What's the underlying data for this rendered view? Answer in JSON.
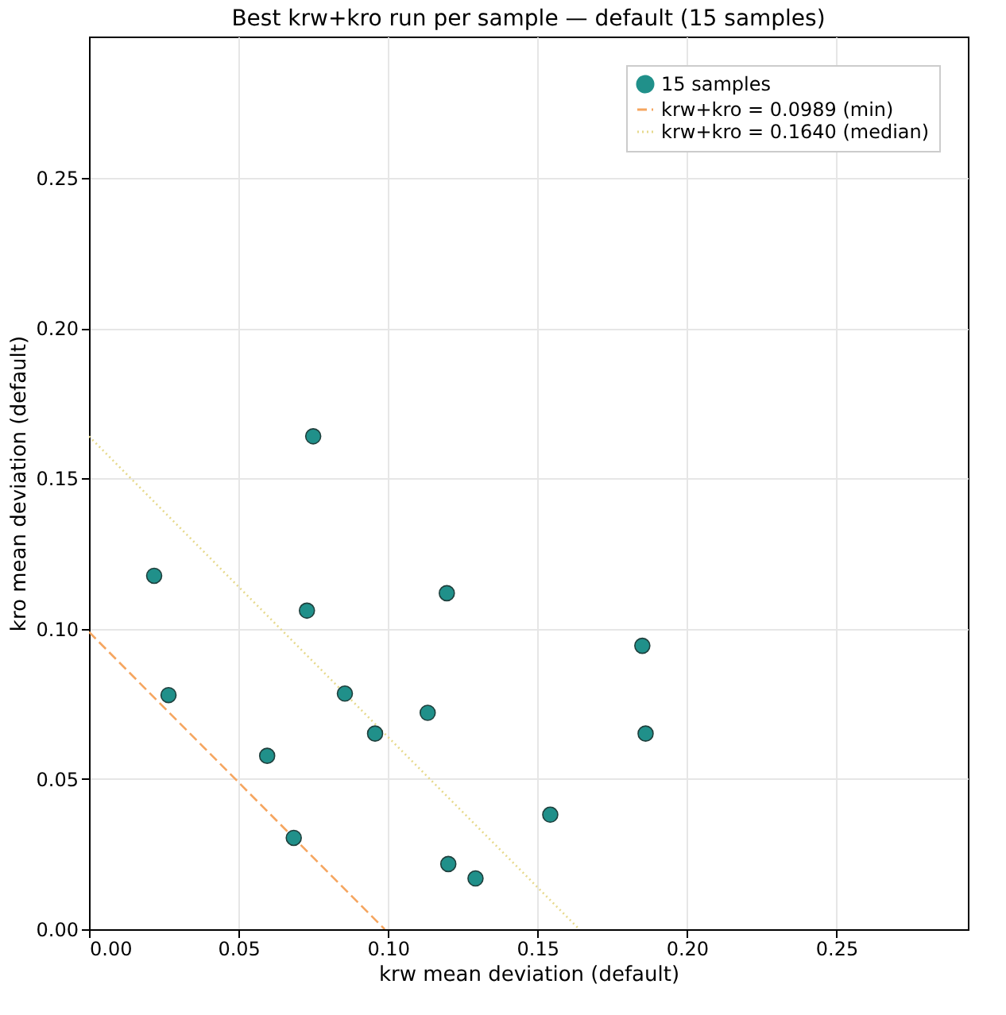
{
  "chart_data": {
    "type": "scatter",
    "title": "Best krw+kro run per sample — default  (15 samples)",
    "xlabel": "krw mean deviation  (default)",
    "ylabel": "kro mean deviation  (default)",
    "xlim": [
      0,
      0.294
    ],
    "ylim": [
      0,
      0.297
    ],
    "xticks": [
      {
        "value": 0,
        "label": "0.00"
      },
      0.05,
      {
        "value": 0.1,
        "label": "0.10"
      },
      0.15,
      {
        "value": 0.2,
        "label": "0.20"
      },
      0.25
    ],
    "yticks": [
      {
        "value": 0,
        "label": "0.00"
      },
      0.05,
      {
        "value": 0.1,
        "label": "0.10"
      },
      0.15,
      {
        "value": 0.2,
        "label": "0.20"
      },
      0.25
    ],
    "grid": true,
    "legend": "top right",
    "series": [
      {
        "name": "15 samples",
        "type": "scatter",
        "marker": "circle",
        "color": "#20908a",
        "x": [
          0.0218,
          0.0266,
          0.075,
          0.0729,
          0.0596,
          0.0685,
          0.0856,
          0.0957,
          0.1197,
          0.1133,
          0.1202,
          0.1293,
          0.1543,
          0.1851,
          0.1862
        ],
        "values": [
          0.1176,
          0.0779,
          0.164,
          0.106,
          0.0577,
          0.0304,
          0.0784,
          0.0651,
          0.1118,
          0.072,
          0.0217,
          0.0169,
          0.0381,
          0.0943,
          0.0651
        ]
      },
      {
        "name": "krw+kro = 0.0989 (min)",
        "type": "line",
        "line_style": "dashed",
        "color": "#f5a55f",
        "x": [
          0,
          0.0989
        ],
        "values": [
          0.0989,
          0
        ]
      },
      {
        "name": "krw+kro = 0.1640 (median)",
        "type": "line",
        "line_style": "dotted",
        "color": "#e6d98c",
        "x": [
          0,
          0.164
        ],
        "values": [
          0.164,
          0
        ]
      }
    ]
  }
}
